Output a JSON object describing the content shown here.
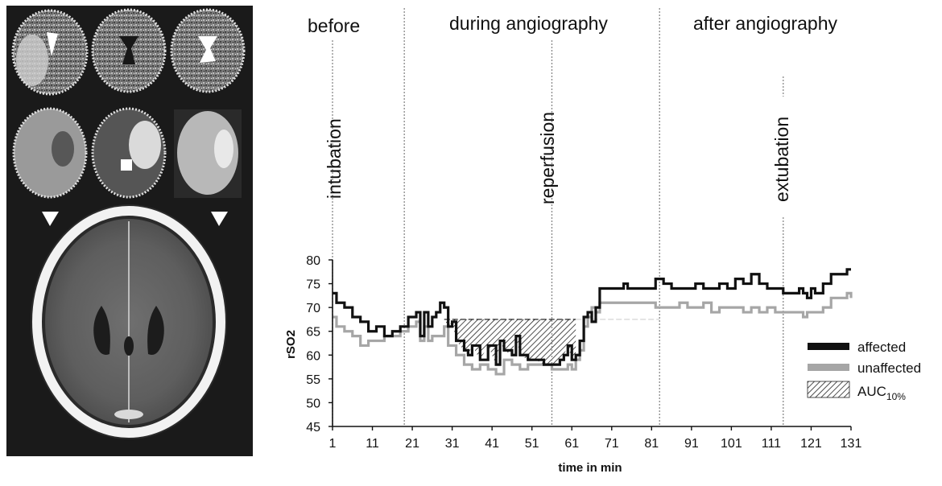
{
  "figure": {
    "phase_labels": [
      "before",
      "during angiography",
      "after angiography"
    ],
    "event_labels": [
      "intubation",
      "reperfusion",
      "extubation"
    ],
    "colors": {
      "affected": "#111111",
      "unaffected": "#a6a6a6",
      "event_line": "#888888",
      "panel_bg": "#1a1a1a"
    },
    "images": {
      "perfusion_maps": "perfusion-map-thumbnails",
      "ct_scan": "axial-ct-brain-scan",
      "arrow_markers": 2
    }
  },
  "chart_data": {
    "type": "line",
    "xlabel": "time in min",
    "ylabel": "rSO2",
    "xlim": [
      1,
      131
    ],
    "ylim": [
      45,
      80
    ],
    "x_ticks": [
      1,
      11,
      21,
      31,
      41,
      51,
      61,
      71,
      81,
      91,
      101,
      111,
      121,
      131
    ],
    "y_ticks": [
      45,
      50,
      55,
      60,
      65,
      70,
      75,
      80
    ],
    "phase_dividers": [
      19,
      83
    ],
    "events": [
      {
        "label": "intubation",
        "x": 1
      },
      {
        "label": "reperfusion",
        "x": 56
      },
      {
        "label": "extubation",
        "x": 114
      }
    ],
    "threshold_10pct": 67.5,
    "auc_region": [
      29,
      62
    ],
    "legend": {
      "position": "right",
      "entries": [
        "affected",
        "unaffected",
        "AUC"
      ],
      "auc_subscript": "10%"
    },
    "series": [
      {
        "name": "affected",
        "points": [
          [
            1,
            73
          ],
          [
            2,
            71
          ],
          [
            4,
            70
          ],
          [
            6,
            68
          ],
          [
            8,
            67
          ],
          [
            10,
            65
          ],
          [
            12,
            66
          ],
          [
            14,
            64
          ],
          [
            16,
            65
          ],
          [
            18,
            66
          ],
          [
            20,
            68
          ],
          [
            22,
            69
          ],
          [
            23,
            64
          ],
          [
            24,
            69
          ],
          [
            25,
            66
          ],
          [
            26,
            68
          ],
          [
            27,
            69
          ],
          [
            28,
            71
          ],
          [
            29,
            70
          ],
          [
            30,
            66
          ],
          [
            31,
            67
          ],
          [
            32,
            63
          ],
          [
            34,
            61
          ],
          [
            35,
            60
          ],
          [
            36,
            62
          ],
          [
            38,
            59
          ],
          [
            40,
            62
          ],
          [
            42,
            58
          ],
          [
            43,
            63
          ],
          [
            44,
            61
          ],
          [
            46,
            60
          ],
          [
            47,
            64
          ],
          [
            48,
            60
          ],
          [
            50,
            59
          ],
          [
            52,
            59
          ],
          [
            54,
            58
          ],
          [
            56,
            58
          ],
          [
            58,
            59
          ],
          [
            59,
            60
          ],
          [
            60,
            62
          ],
          [
            61,
            59
          ],
          [
            62,
            60
          ],
          [
            63,
            63
          ],
          [
            64,
            68
          ],
          [
            65,
            69
          ],
          [
            66,
            67
          ],
          [
            67,
            70
          ],
          [
            68,
            74
          ],
          [
            70,
            74
          ],
          [
            72,
            74
          ],
          [
            74,
            75
          ],
          [
            75,
            74
          ],
          [
            78,
            74
          ],
          [
            80,
            74
          ],
          [
            82,
            76
          ],
          [
            84,
            75
          ],
          [
            86,
            74
          ],
          [
            88,
            74
          ],
          [
            90,
            74
          ],
          [
            92,
            75
          ],
          [
            94,
            74
          ],
          [
            96,
            74
          ],
          [
            98,
            75
          ],
          [
            100,
            74
          ],
          [
            102,
            76
          ],
          [
            104,
            75
          ],
          [
            106,
            77
          ],
          [
            108,
            75
          ],
          [
            110,
            74
          ],
          [
            112,
            74
          ],
          [
            114,
            73
          ],
          [
            116,
            73
          ],
          [
            118,
            74
          ],
          [
            119,
            73
          ],
          [
            120,
            72
          ],
          [
            121,
            74
          ],
          [
            122,
            73
          ],
          [
            124,
            75
          ],
          [
            126,
            77
          ],
          [
            128,
            77
          ],
          [
            130,
            78
          ],
          [
            131,
            78
          ]
        ]
      },
      {
        "name": "unaffected",
        "points": [
          [
            1,
            68
          ],
          [
            2,
            66
          ],
          [
            4,
            65
          ],
          [
            6,
            64
          ],
          [
            8,
            62
          ],
          [
            10,
            63
          ],
          [
            12,
            63
          ],
          [
            14,
            64
          ],
          [
            16,
            64
          ],
          [
            18,
            65
          ],
          [
            20,
            66
          ],
          [
            22,
            67
          ],
          [
            23,
            63
          ],
          [
            24,
            66
          ],
          [
            25,
            63
          ],
          [
            26,
            64
          ],
          [
            28,
            64
          ],
          [
            29,
            66
          ],
          [
            30,
            62
          ],
          [
            31,
            62
          ],
          [
            32,
            60
          ],
          [
            34,
            58
          ],
          [
            36,
            57
          ],
          [
            38,
            58
          ],
          [
            40,
            57
          ],
          [
            42,
            56
          ],
          [
            44,
            59
          ],
          [
            46,
            58
          ],
          [
            48,
            57
          ],
          [
            50,
            58
          ],
          [
            52,
            58
          ],
          [
            54,
            58
          ],
          [
            56,
            57
          ],
          [
            58,
            57
          ],
          [
            60,
            58
          ],
          [
            61,
            57
          ],
          [
            62,
            59
          ],
          [
            63,
            61
          ],
          [
            64,
            66
          ],
          [
            65,
            68
          ],
          [
            66,
            70
          ],
          [
            67,
            69
          ],
          [
            68,
            71
          ],
          [
            70,
            71
          ],
          [
            72,
            71
          ],
          [
            74,
            71
          ],
          [
            76,
            71
          ],
          [
            78,
            71
          ],
          [
            80,
            71
          ],
          [
            82,
            70
          ],
          [
            84,
            70
          ],
          [
            86,
            70
          ],
          [
            88,
            71
          ],
          [
            90,
            70
          ],
          [
            92,
            70
          ],
          [
            94,
            71
          ],
          [
            96,
            69
          ],
          [
            98,
            70
          ],
          [
            100,
            70
          ],
          [
            102,
            70
          ],
          [
            104,
            69
          ],
          [
            106,
            70
          ],
          [
            108,
            69
          ],
          [
            110,
            70
          ],
          [
            112,
            69
          ],
          [
            114,
            69
          ],
          [
            116,
            69
          ],
          [
            118,
            69
          ],
          [
            119,
            68
          ],
          [
            120,
            69
          ],
          [
            122,
            69
          ],
          [
            124,
            70
          ],
          [
            126,
            72
          ],
          [
            128,
            72
          ],
          [
            130,
            73
          ],
          [
            131,
            72
          ]
        ]
      }
    ]
  }
}
